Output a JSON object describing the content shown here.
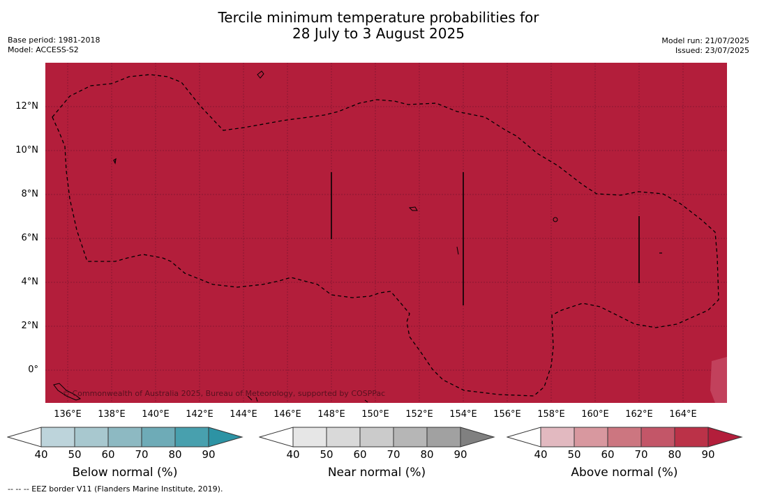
{
  "title": {
    "line1": "Tercile minimum temperature probabilities for",
    "line2": "28 July to 3 August 2025"
  },
  "meta_left": {
    "base_period": "Base period: 1981-2018",
    "model": "Model: ACCESS-S2"
  },
  "meta_right": {
    "model_run": "Model run: 21/07/2025",
    "issued": "Issued: 23/07/2025"
  },
  "map": {
    "fill_color": "#b31e3b",
    "credit": "© Commonwealth of Australia 2025, Bureau of Meteorology, supported by COSPPac",
    "lat_labels": [
      "12°N",
      "10°N",
      "8°N",
      "6°N",
      "4°N",
      "2°N",
      "0°"
    ],
    "lon_labels": [
      "136°E",
      "138°E",
      "140°E",
      "142°E",
      "144°E",
      "146°E",
      "148°E",
      "150°E",
      "152°E",
      "154°E",
      "156°E",
      "158°E",
      "160°E",
      "162°E",
      "164°E"
    ]
  },
  "colorbars": {
    "ticks": [
      "40",
      "50",
      "60",
      "70",
      "80",
      "90"
    ],
    "below": {
      "label": "Below normal (%)",
      "colors": [
        "#ffffff",
        "#bdd4db",
        "#a8c8cf",
        "#8db9c2",
        "#6eabb7",
        "#48a0ae",
        "#2d93a4"
      ]
    },
    "near": {
      "label": "Near normal (%)",
      "colors": [
        "#ffffff",
        "#e6e6e6",
        "#d9d9d9",
        "#cbcbcb",
        "#b6b6b6",
        "#a1a1a1",
        "#808080"
      ]
    },
    "above": {
      "label": "Above normal (%)",
      "colors": [
        "#ffffff",
        "#e2b9c0",
        "#d8989f",
        "#cc7680",
        "#c35668",
        "#bb3248",
        "#b31e3b"
      ]
    }
  },
  "footnote": "--  --  -- EEZ border V11 (Flanders Marine Institute, 2019)."
}
